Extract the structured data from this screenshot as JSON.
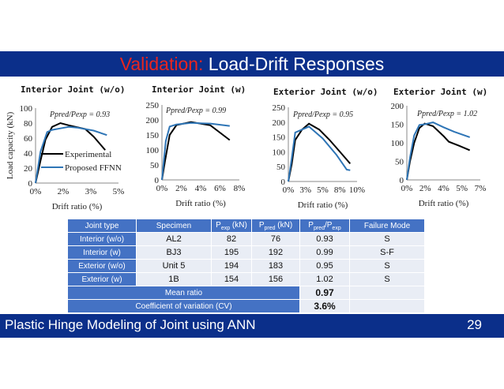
{
  "slide": {
    "title_highlight": "Validation:",
    "title_rest": " Load-Drift Responses",
    "footer_text": "Plastic Hinge Modeling of Joint using ANN",
    "page_number": "29",
    "colors": {
      "bar": "#0b2f8a",
      "title_highlight": "#e8251f",
      "table_header": "#4472c4",
      "table_cell": "#e9edf5",
      "experimental": "#000000",
      "ffnn": "#2e75b6"
    }
  },
  "chart_data": [
    {
      "type": "line",
      "title": "Interior Joint (w/o)",
      "xlabel": "Drift ratio (%)",
      "ylabel": "Load capacity (kN)",
      "xlim": [
        0,
        5
      ],
      "ylim": [
        0,
        100
      ],
      "xticks": [
        "0%",
        "2%",
        "3%",
        "5%"
      ],
      "yticks": [
        "0",
        "20",
        "40",
        "60",
        "80",
        "100"
      ],
      "annotation": "Ppred/Pexp = 0.93",
      "legend": [
        "Experimental",
        "Proposed FFNN"
      ],
      "series": [
        {
          "name": "Experimental",
          "points": [
            [
              0,
              0
            ],
            [
              0.3,
              30
            ],
            [
              0.6,
              58
            ],
            [
              1.0,
              75
            ],
            [
              1.5,
              80
            ],
            [
              2.0,
              77
            ],
            [
              3.0,
              72
            ],
            [
              3.5,
              62
            ],
            [
              4.2,
              44
            ]
          ]
        },
        {
          "name": "Proposed FFNN",
          "points": [
            [
              0,
              0
            ],
            [
              0.3,
              42
            ],
            [
              0.7,
              68
            ],
            [
              1.0,
              71
            ],
            [
              1.5,
              73
            ],
            [
              2.0,
              75
            ],
            [
              2.5,
              74
            ],
            [
              3.5,
              70
            ],
            [
              4.3,
              64
            ]
          ]
        }
      ]
    },
    {
      "type": "line",
      "title": "Interior Joint (w)",
      "xlabel": "Drift ratio (%)",
      "ylabel": "",
      "xlim": [
        0,
        8
      ],
      "ylim": [
        0,
        250
      ],
      "xticks": [
        "0%",
        "2%",
        "4%",
        "6%",
        "8%"
      ],
      "yticks": [
        "0",
        "50",
        "100",
        "150",
        "200",
        "250"
      ],
      "annotation": "Ppred/Pexp = 0.99",
      "series": [
        {
          "name": "Experimental",
          "points": [
            [
              0,
              0
            ],
            [
              0.3,
              60
            ],
            [
              0.8,
              150
            ],
            [
              1.5,
              183
            ],
            [
              3.0,
              193
            ],
            [
              5.0,
              182
            ],
            [
              7.0,
              133
            ]
          ]
        },
        {
          "name": "Proposed FFNN",
          "points": [
            [
              0,
              0
            ],
            [
              0.4,
              130
            ],
            [
              0.8,
              178
            ],
            [
              1.5,
              185
            ],
            [
              3.0,
              190
            ],
            [
              5.0,
              188
            ],
            [
              7.0,
              180
            ]
          ]
        }
      ]
    },
    {
      "type": "line",
      "title": "Exterior Joint (w/o)",
      "xlabel": "Drift ratio (%)",
      "ylabel": "",
      "xlim": [
        0,
        10
      ],
      "ylim": [
        0,
        250
      ],
      "xticks": [
        "0%",
        "3%",
        "5%",
        "8%",
        "10%"
      ],
      "yticks": [
        "0",
        "50",
        "100",
        "150",
        "200",
        "250"
      ],
      "annotation": "Ppred/Pexp = 0.95",
      "series": [
        {
          "name": "Experimental",
          "points": [
            [
              0,
              0
            ],
            [
              0.5,
              60
            ],
            [
              1.0,
              140
            ],
            [
              2.0,
              175
            ],
            [
              3.0,
              195
            ],
            [
              4.5,
              175
            ],
            [
              6.0,
              140
            ],
            [
              7.5,
              100
            ],
            [
              9.0,
              60
            ]
          ]
        },
        {
          "name": "Proposed FFNN",
          "points": [
            [
              0,
              0
            ],
            [
              0.5,
              80
            ],
            [
              1.0,
              165
            ],
            [
              2.0,
              175
            ],
            [
              3.0,
              185
            ],
            [
              5.0,
              145
            ],
            [
              7.0,
              90
            ],
            [
              8.5,
              40
            ],
            [
              9.0,
              38
            ]
          ]
        }
      ]
    },
    {
      "type": "line",
      "title": "Exterior Joint (w)",
      "xlabel": "Drift ratio (%)",
      "ylabel": "",
      "xlim": [
        0,
        7
      ],
      "ylim": [
        0,
        200
      ],
      "xticks": [
        "0%",
        "2%",
        "4%",
        "5%",
        "7%"
      ],
      "yticks": [
        "0",
        "50",
        "100",
        "150",
        "200"
      ],
      "annotation": "Ppred/Pexp = 1.02",
      "series": [
        {
          "name": "Experimental",
          "points": [
            [
              0,
              0
            ],
            [
              0.3,
              50
            ],
            [
              0.7,
              100
            ],
            [
              1.2,
              140
            ],
            [
              1.7,
              152
            ],
            [
              2.5,
              145
            ],
            [
              3.5,
              118
            ],
            [
              4.0,
              103
            ],
            [
              5.0,
              92
            ],
            [
              6.0,
              80
            ]
          ]
        },
        {
          "name": "Proposed FFNN",
          "points": [
            [
              0,
              0
            ],
            [
              0.3,
              60
            ],
            [
              0.7,
              120
            ],
            [
              1.2,
              148
            ],
            [
              1.7,
              150
            ],
            [
              2.5,
              155
            ],
            [
              3.5,
              142
            ],
            [
              4.5,
              130
            ],
            [
              6.0,
              115
            ]
          ]
        }
      ]
    }
  ],
  "table": {
    "headers": [
      "Joint type",
      "Specimen",
      "P_exp (kN)",
      "P_pred (kN)",
      "P_pred/P_exp",
      "Failure Mode"
    ],
    "header_parts": {
      "pexp_main": "P",
      "pexp_sub": "exp",
      "pexp_unit": " (kN)",
      "ppred_main": "P",
      "ppred_sub": "pred",
      "ppred_unit": " (kN)",
      "ratio_main1": "P",
      "ratio_sub1": "pred",
      "ratio_slash": "/P",
      "ratio_sub2": "exp"
    },
    "rows": [
      [
        "Interior (w/o)",
        "AL2",
        "82",
        "76",
        "0.93",
        "S"
      ],
      [
        "Interior (w)",
        "BJ3",
        "195",
        "192",
        "0.99",
        "S-F"
      ],
      [
        "Exterior (w/o)",
        "Unit 5",
        "194",
        "183",
        "0.95",
        "S"
      ],
      [
        "Exterior (w)",
        "1B",
        "154",
        "156",
        "1.02",
        "S"
      ]
    ],
    "mean_label": "Mean ratio",
    "mean_value": "0.97",
    "cv_label": "Coefficient of variation (CV)",
    "cv_value": "3.6%"
  }
}
